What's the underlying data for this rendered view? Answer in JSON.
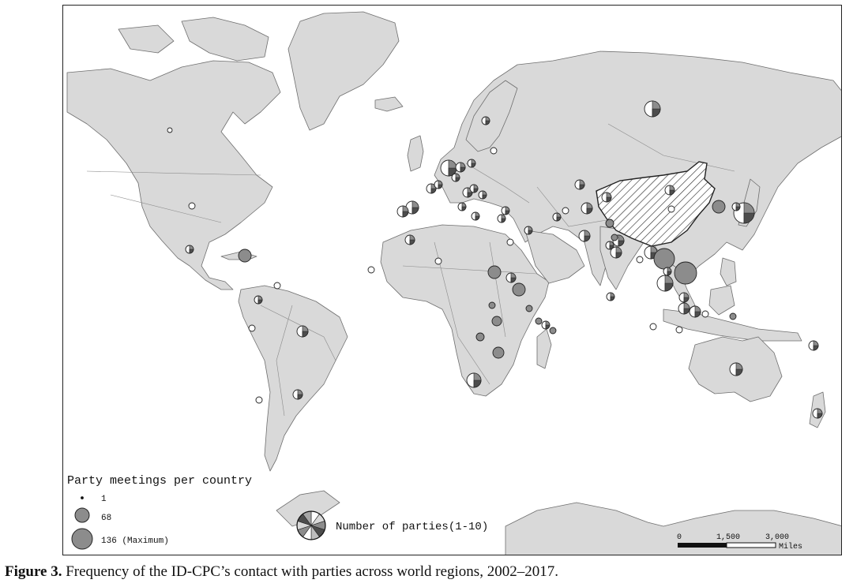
{
  "legend": {
    "title": "Party meetings per country",
    "sizes": [
      {
        "label": "1",
        "value": 1
      },
      {
        "label": "68",
        "value": 68
      },
      {
        "label": "136 (Maximum)",
        "value": 136
      }
    ],
    "pie_label": "Number of parties(1-10)"
  },
  "scale_bar": {
    "ticks": [
      "0",
      "1,500",
      "3,000"
    ],
    "unit": "Miles"
  },
  "caption": {
    "label": "Figure 3.",
    "text": " Frequency of the ID-CPC’s contact with parties across world regions, 2002–2017."
  },
  "colors": {
    "land": "#d9d9d9",
    "coast": "#6e6e6e",
    "symbol_fill": "#8c8c8c",
    "symbol_dark": "#4d4d4d",
    "symbol_light": "#ffffff"
  },
  "highlighted_country": "China (hatched)"
}
